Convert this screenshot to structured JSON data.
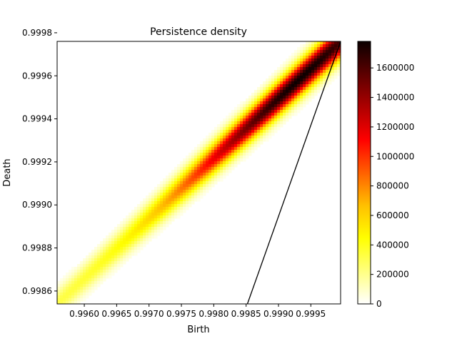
{
  "chart_data": {
    "type": "heatmap",
    "title": "Persistence density",
    "xlabel": "Birth",
    "ylabel": "Death",
    "xlim": [
      0.99558,
      0.99996
    ],
    "ylim": [
      0.99854,
      0.99976
    ],
    "x_ticks": [
      {
        "value": 0.996,
        "label": "0.9960"
      },
      {
        "value": 0.9965,
        "label": "0.9965"
      },
      {
        "value": 0.997,
        "label": "0.9970"
      },
      {
        "value": 0.9975,
        "label": "0.9975"
      },
      {
        "value": 0.998,
        "label": "0.9980"
      },
      {
        "value": 0.9985,
        "label": "0.9985"
      },
      {
        "value": 0.999,
        "label": "0.9990"
      },
      {
        "value": 0.9995,
        "label": "0.9995"
      }
    ],
    "y_ticks": [
      {
        "value": 0.9986,
        "label": "0.9986"
      },
      {
        "value": 0.9988,
        "label": "0.9988"
      },
      {
        "value": 0.999,
        "label": "0.9990"
      },
      {
        "value": 0.9992,
        "label": "0.9992"
      },
      {
        "value": 0.9994,
        "label": "0.9994"
      },
      {
        "value": 0.9996,
        "label": "0.9996"
      },
      {
        "value": 0.9998,
        "label": "0.9998"
      }
    ],
    "density_ridge": {
      "start": {
        "birth": 0.99558,
        "death": 0.99854
      },
      "end": {
        "birth": 0.99996,
        "death": 0.99976
      },
      "peak_birth": 0.99935,
      "peak_density": 1780000,
      "min_density": 300000
    },
    "line": {
      "from": {
        "birth": 0.99852,
        "death": 0.99854
      },
      "to": {
        "birth": 0.99996,
        "death": 0.99976
      },
      "color": "#000000"
    },
    "colorbar": {
      "colormap": "hot_r",
      "min": 0,
      "max": 1780000,
      "ticks": [
        {
          "value": 0,
          "label": "0"
        },
        {
          "value": 200000,
          "label": "200000"
        },
        {
          "value": 400000,
          "label": "400000"
        },
        {
          "value": 600000,
          "label": "600000"
        },
        {
          "value": 800000,
          "label": "800000"
        },
        {
          "value": 1000000,
          "label": "1000000"
        },
        {
          "value": 1200000,
          "label": "1200000"
        },
        {
          "value": 1400000,
          "label": "1400000"
        },
        {
          "value": 1600000,
          "label": "1600000"
        }
      ]
    }
  }
}
